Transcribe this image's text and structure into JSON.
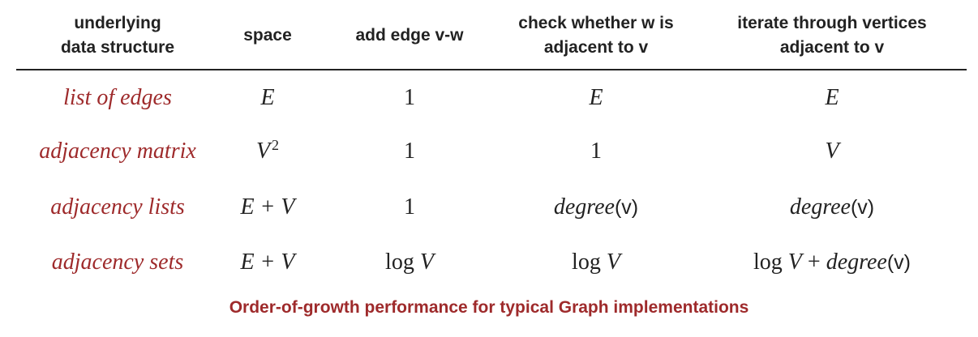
{
  "headers": {
    "structure": [
      "underlying",
      "data structure"
    ],
    "space": "space",
    "add_edge": "add edge v-w",
    "check_adjacent": [
      "check whether w is",
      "adjacent to v"
    ],
    "iterate": [
      "iterate through vertices",
      "adjacent to v"
    ]
  },
  "rows": [
    {
      "structure": "list of edges",
      "space": "E",
      "add_edge": "1",
      "check": "E",
      "iterate": "E"
    },
    {
      "structure": "adjacency matrix",
      "space_base": "V",
      "space_exp": "2",
      "add_edge": "1",
      "check": "1",
      "iterate": "V"
    },
    {
      "structure": "adjacency lists",
      "space": "E + V",
      "add_edge": "1",
      "check_fn": "degree",
      "check_arg": "(v)",
      "iterate_fn": "degree",
      "iterate_arg": "(v)"
    },
    {
      "structure": "adjacency sets",
      "space": "E + V",
      "add_log": "log",
      "add_var": "V",
      "check_log": "log",
      "check_var": "V",
      "iter_log": "log",
      "iter_var": "V",
      "iter_plus": "+",
      "iter_fn": "degree",
      "iter_arg": "(v)"
    }
  ],
  "caption": "Order-of-growth performance for typical Graph implementations",
  "colors": {
    "accent": "#9e2a2b",
    "text": "#222222"
  }
}
